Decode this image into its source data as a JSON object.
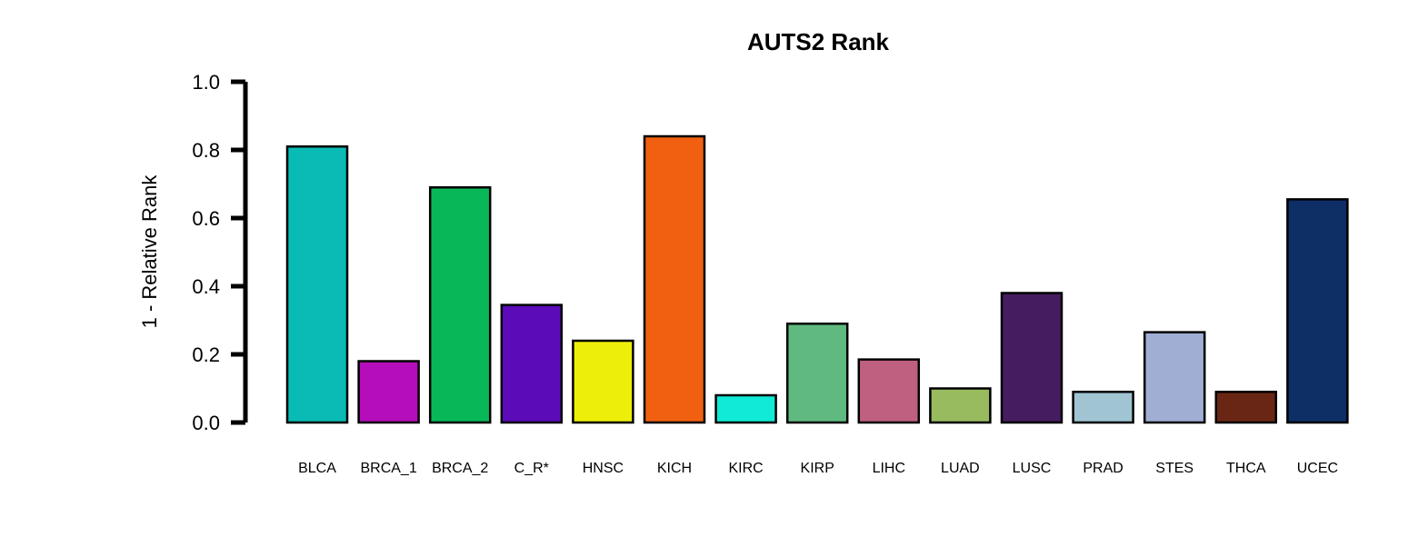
{
  "chart_data": {
    "type": "bar",
    "title": "AUTS2 Rank",
    "xlabel": "",
    "ylabel": "1 - Relative Rank",
    "ylim": [
      0,
      1.0
    ],
    "yticks": [
      "0.0",
      "0.2",
      "0.4",
      "0.6",
      "0.8",
      "1.0"
    ],
    "grid": false,
    "legend": "none",
    "categories": [
      "BLCA",
      "BRCA_1",
      "BRCA_2",
      "C_R*",
      "HNSC",
      "KICH",
      "KIRC",
      "KIRP",
      "LIHC",
      "LUAD",
      "LUSC",
      "PRAD",
      "STES",
      "THCA",
      "UCEC"
    ],
    "values": [
      0.81,
      0.18,
      0.69,
      0.345,
      0.24,
      0.84,
      0.08,
      0.29,
      0.185,
      0.1,
      0.38,
      0.09,
      0.265,
      0.09,
      0.655
    ],
    "colors": [
      "#0ABAB5",
      "#B40DB9",
      "#08B858",
      "#5C0BB8",
      "#EEEE0B",
      "#F06010",
      "#10EAD6",
      "#60BA80",
      "#BF6080",
      "#98BB60",
      "#461C60",
      "#A0C4D2",
      "#A0AED4",
      "#6A2614",
      "#0E2E66"
    ]
  }
}
